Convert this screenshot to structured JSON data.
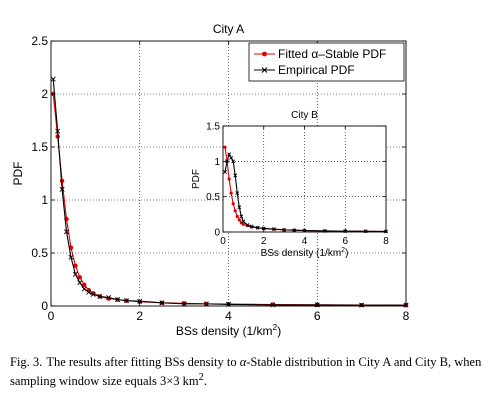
{
  "chart_data": [
    {
      "id": "main",
      "type": "line",
      "title": "City A",
      "xlabel": "BSs density (1/km",
      "xlabel_sup": "2",
      "xlabel_tail": ")",
      "ylabel": "PDF",
      "xlim": [
        0,
        8
      ],
      "ylim": [
        0,
        2.5
      ],
      "xticks": [
        0,
        2,
        4,
        6,
        8
      ],
      "xtick_labels": [
        "0",
        "2",
        "4",
        "6",
        "8"
      ],
      "yticks": [
        0,
        0.5,
        1,
        1.5,
        2,
        2.5
      ],
      "ytick_labels": [
        "0",
        "0.5",
        "1",
        "1.5",
        "2",
        "2.5"
      ],
      "grid": true,
      "legend_position": "top-right",
      "series": [
        {
          "name": "Fitted α–Stable PDF",
          "color": "#e00000",
          "marker": "dot",
          "x": [
            0.05,
            0.15,
            0.25,
            0.35,
            0.45,
            0.55,
            0.65,
            0.75,
            0.85,
            0.95,
            1.1,
            1.3,
            1.5,
            1.7,
            2.0,
            2.5,
            3.0,
            3.5,
            4.0,
            5.0,
            6.0,
            7.0,
            8.0
          ],
          "y": [
            2.0,
            1.6,
            1.18,
            0.82,
            0.55,
            0.38,
            0.27,
            0.2,
            0.15,
            0.12,
            0.09,
            0.07,
            0.06,
            0.05,
            0.04,
            0.03,
            0.025,
            0.02,
            0.018,
            0.014,
            0.011,
            0.009,
            0.008
          ]
        },
        {
          "name": "Empirical PDF",
          "color": "#000000",
          "marker": "x",
          "x": [
            0.05,
            0.15,
            0.25,
            0.35,
            0.45,
            0.55,
            0.65,
            0.75,
            0.85,
            0.95,
            1.1,
            1.3,
            1.5,
            1.7,
            2.0,
            2.5,
            3.0,
            3.5,
            4.0,
            5.0,
            6.0,
            7.0,
            8.0
          ],
          "y": [
            2.14,
            1.65,
            1.1,
            0.7,
            0.46,
            0.3,
            0.22,
            0.16,
            0.13,
            0.11,
            0.09,
            0.08,
            0.06,
            0.05,
            0.045,
            0.03,
            0.02,
            0.02,
            0.015,
            0.01,
            0.01,
            0.008,
            0.008
          ]
        }
      ]
    },
    {
      "id": "inset",
      "type": "line",
      "title": "City B",
      "xlabel": "BSs density (1/km",
      "xlabel_sup": "2",
      "xlabel_tail": ")",
      "ylabel": "PDF",
      "xlim": [
        0,
        8
      ],
      "ylim": [
        0,
        1.5
      ],
      "xticks": [
        0,
        2,
        4,
        6,
        8
      ],
      "xtick_labels": [
        "0",
        "2",
        "4",
        "6",
        "8"
      ],
      "yticks": [
        0,
        0.5,
        1,
        1.5
      ],
      "ytick_labels": [
        "0",
        "0.5",
        "1",
        "1.5"
      ],
      "grid": true,
      "series": [
        {
          "name": "Fitted α–Stable PDF",
          "color": "#e00000",
          "marker": "dot",
          "x": [
            0.1,
            0.2,
            0.3,
            0.4,
            0.5,
            0.6,
            0.7,
            0.8,
            0.9,
            1.0,
            1.2,
            1.4,
            1.7,
            2.0,
            2.5,
            3.0,
            3.5,
            4.0,
            5.0,
            6.0,
            7.0,
            8.0
          ],
          "y": [
            1.2,
            1.0,
            0.75,
            0.55,
            0.4,
            0.3,
            0.22,
            0.17,
            0.13,
            0.11,
            0.09,
            0.07,
            0.06,
            0.05,
            0.04,
            0.03,
            0.025,
            0.02,
            0.015,
            0.012,
            0.01,
            0.008
          ]
        },
        {
          "name": "Empirical PDF",
          "color": "#000000",
          "marker": "x",
          "x": [
            0.1,
            0.2,
            0.3,
            0.4,
            0.5,
            0.6,
            0.7,
            0.8,
            0.9,
            1.0,
            1.2,
            1.4,
            1.7,
            2.0,
            2.5,
            3.0,
            3.5,
            4.0,
            5.0,
            6.0,
            7.0,
            8.0
          ],
          "y": [
            0.85,
            1.0,
            1.1,
            1.05,
            1.0,
            0.8,
            0.55,
            0.35,
            0.22,
            0.15,
            0.1,
            0.08,
            0.06,
            0.05,
            0.04,
            0.03,
            0.025,
            0.02,
            0.015,
            0.012,
            0.01,
            0.008
          ]
        }
      ]
    }
  ],
  "caption": {
    "label": "Fig. 3.",
    "text_before": "The results after fitting BSs density to ",
    "alpha": "α",
    "text_mid": "-Stable distribution in City A and City B, when sampling window size equals 3×3 km",
    "sup": "2",
    "text_end": "."
  }
}
